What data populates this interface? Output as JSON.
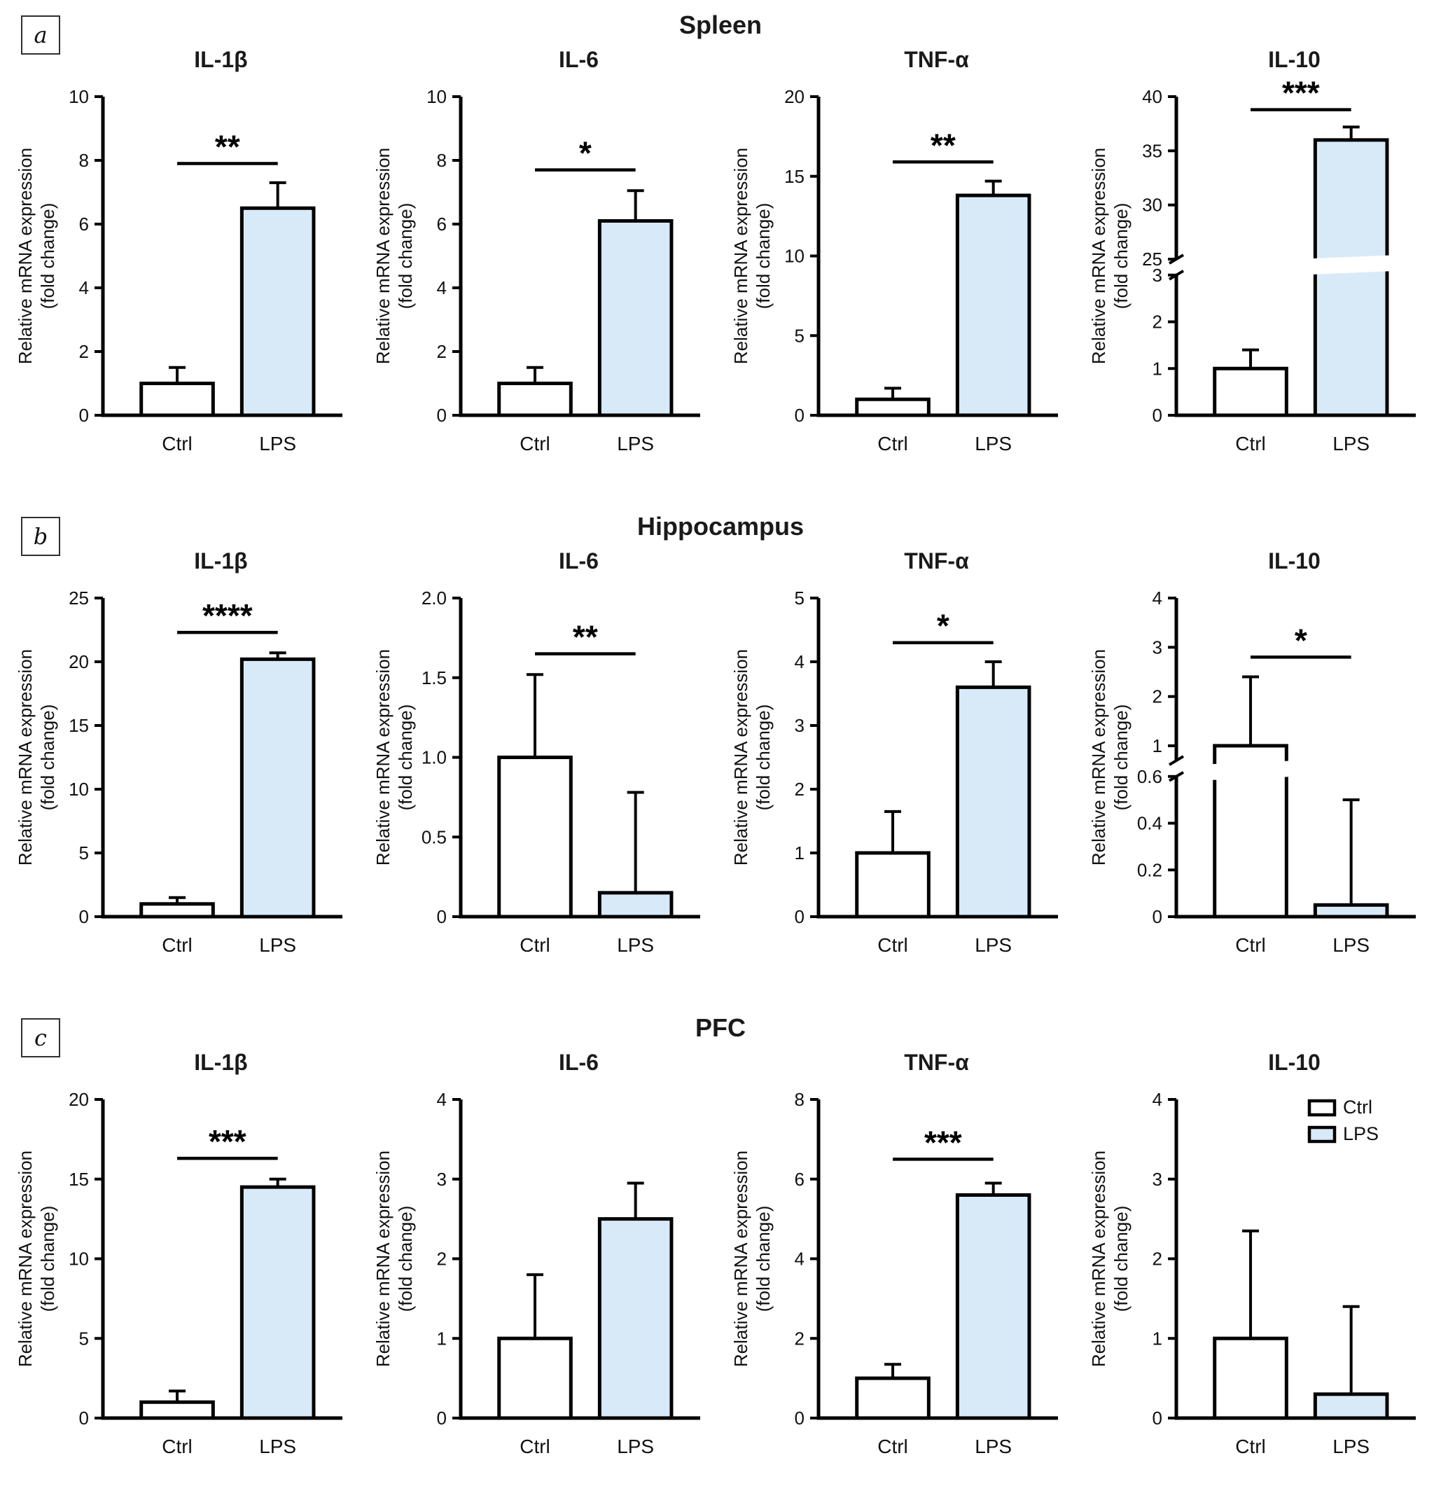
{
  "figure": {
    "panels": [
      {
        "id": "a",
        "title": "Spleen"
      },
      {
        "id": "b",
        "title": "Hippocampus"
      },
      {
        "id": "c",
        "title": "PFC"
      }
    ],
    "ylabel_lines": [
      "Relative mRNA expression",
      "(fold change)"
    ],
    "categories": [
      "Ctrl",
      "LPS"
    ],
    "colors": {
      "ctrl_fill": "#ffffff",
      "lps_fill": "#d8eaf8",
      "stroke": "#000000",
      "background": "#ffffff"
    },
    "legend": [
      {
        "label": "Ctrl",
        "fill": "#ffffff"
      },
      {
        "label": "LPS",
        "fill": "#d8eaf8"
      }
    ]
  },
  "chart_data": [
    {
      "type": "bar",
      "panel": "a",
      "region": "Spleen",
      "title": "IL-1β",
      "categories": [
        "Ctrl",
        "LPS"
      ],
      "values": [
        1.0,
        6.5
      ],
      "errors_up": [
        0.5,
        0.8
      ],
      "significance": "**",
      "sig_y": 7.9,
      "ylabel": "Relative mRNA expression (fold change)",
      "ylim": [
        0,
        10
      ],
      "yticks": [
        0,
        2,
        4,
        6,
        8,
        10
      ],
      "ytick_labels": [
        "0",
        "2",
        "4",
        "6",
        "8",
        "10"
      ]
    },
    {
      "type": "bar",
      "panel": "a",
      "region": "Spleen",
      "title": "IL-6",
      "categories": [
        "Ctrl",
        "LPS"
      ],
      "values": [
        1.0,
        6.1
      ],
      "errors_up": [
        0.5,
        0.95
      ],
      "significance": "*",
      "sig_y": 7.7,
      "ylabel": "Relative mRNA expression (fold change)",
      "ylim": [
        0,
        10
      ],
      "yticks": [
        0,
        2,
        4,
        6,
        8,
        10
      ],
      "ytick_labels": [
        "0",
        "2",
        "4",
        "6",
        "8",
        "10"
      ]
    },
    {
      "type": "bar",
      "panel": "a",
      "region": "Spleen",
      "title": "TNF-α",
      "categories": [
        "Ctrl",
        "LPS"
      ],
      "values": [
        1.0,
        13.8
      ],
      "errors_up": [
        0.7,
        0.9
      ],
      "significance": "**",
      "sig_y": 15.9,
      "ylabel": "Relative mRNA expression (fold change)",
      "ylim": [
        0,
        20
      ],
      "yticks": [
        0,
        5,
        10,
        15,
        20
      ],
      "ytick_labels": [
        "0",
        "5",
        "10",
        "15",
        "20"
      ]
    },
    {
      "type": "bar",
      "panel": "a",
      "region": "Spleen",
      "title": "IL-10",
      "categories": [
        "Ctrl",
        "LPS"
      ],
      "values": [
        1.0,
        36.0
      ],
      "errors_up": [
        0.4,
        1.2
      ],
      "significance": "***",
      "sig_y": 38.8,
      "ylabel": "Relative mRNA expression (fold change)",
      "ylim": [
        0,
        40
      ],
      "axis_break": {
        "lower_lim": [
          0,
          3
        ],
        "lower_ticks": [
          0,
          1,
          2,
          3
        ],
        "lower_tick_labels": [
          "0",
          "1",
          "2",
          "3"
        ],
        "upper_lim": [
          25,
          40
        ],
        "upper_ticks": [
          25,
          30,
          35,
          40
        ],
        "upper_tick_labels": [
          "25",
          "30",
          "35",
          "40"
        ]
      }
    },
    {
      "type": "bar",
      "panel": "b",
      "region": "Hippocampus",
      "title": "IL-1β",
      "categories": [
        "Ctrl",
        "LPS"
      ],
      "values": [
        1.0,
        20.2
      ],
      "errors_up": [
        0.5,
        0.5
      ],
      "significance": "****",
      "sig_y": 22.3,
      "ylabel": "Relative mRNA expression (fold change)",
      "ylim": [
        0,
        25
      ],
      "yticks": [
        0,
        5,
        10,
        15,
        20,
        25
      ],
      "ytick_labels": [
        "0",
        "5",
        "10",
        "15",
        "20",
        "25"
      ]
    },
    {
      "type": "bar",
      "panel": "b",
      "region": "Hippocampus",
      "title": "IL-6",
      "categories": [
        "Ctrl",
        "LPS"
      ],
      "values": [
        1.0,
        0.15
      ],
      "errors_up": [
        0.52,
        0.63
      ],
      "significance": "**",
      "sig_y": 1.65,
      "ylabel": "Relative mRNA expression (fold change)",
      "ylim": [
        0,
        2
      ],
      "yticks": [
        0,
        0.5,
        1.0,
        1.5,
        2.0
      ],
      "ytick_labels": [
        "0",
        "0.5",
        "1.0",
        "1.5",
        "2.0"
      ]
    },
    {
      "type": "bar",
      "panel": "b",
      "region": "Hippocampus",
      "title": "TNF-α",
      "categories": [
        "Ctrl",
        "LPS"
      ],
      "values": [
        1.0,
        3.6
      ],
      "errors_up": [
        0.65,
        0.4
      ],
      "significance": "*",
      "sig_y": 4.3,
      "ylabel": "Relative mRNA expression (fold change)",
      "ylim": [
        0,
        5
      ],
      "yticks": [
        0,
        1,
        2,
        3,
        4,
        5
      ],
      "ytick_labels": [
        "0",
        "1",
        "2",
        "3",
        "4",
        "5"
      ]
    },
    {
      "type": "bar",
      "panel": "b",
      "region": "Hippocampus",
      "title": "IL-10",
      "categories": [
        "Ctrl",
        "LPS"
      ],
      "values": [
        1.0,
        0.05
      ],
      "errors_up": [
        1.4,
        0.45
      ],
      "significance": "*",
      "sig_y": 2.8,
      "ylabel": "Relative mRNA expression (fold change)",
      "ylim": [
        0,
        4
      ],
      "axis_break": {
        "lower_lim": [
          0,
          0.6
        ],
        "lower_ticks": [
          0,
          0.2,
          0.4,
          0.6
        ],
        "lower_tick_labels": [
          "0",
          "0.2",
          "0.4",
          "0.6"
        ],
        "upper_lim": [
          0.7,
          4
        ],
        "upper_ticks": [
          1,
          2,
          3,
          4
        ],
        "upper_tick_labels": [
          "1",
          "2",
          "3",
          "4"
        ]
      }
    },
    {
      "type": "bar",
      "panel": "c",
      "region": "PFC",
      "title": "IL-1β",
      "categories": [
        "Ctrl",
        "LPS"
      ],
      "values": [
        1.0,
        14.5
      ],
      "errors_up": [
        0.7,
        0.5
      ],
      "significance": "***",
      "sig_y": 16.3,
      "ylabel": "Relative mRNA expression (fold change)",
      "ylim": [
        0,
        20
      ],
      "yticks": [
        0,
        5,
        10,
        15,
        20
      ],
      "ytick_labels": [
        "0",
        "5",
        "10",
        "15",
        "20"
      ]
    },
    {
      "type": "bar",
      "panel": "c",
      "region": "PFC",
      "title": "IL-6",
      "categories": [
        "Ctrl",
        "LPS"
      ],
      "values": [
        1.0,
        2.5
      ],
      "errors_up": [
        0.8,
        0.45
      ],
      "significance": null,
      "sig_y": null,
      "ylabel": "Relative mRNA expression (fold change)",
      "ylim": [
        0,
        4
      ],
      "yticks": [
        0,
        1,
        2,
        3,
        4
      ],
      "ytick_labels": [
        "0",
        "1",
        "2",
        "3",
        "4"
      ]
    },
    {
      "type": "bar",
      "panel": "c",
      "region": "PFC",
      "title": "TNF-α",
      "categories": [
        "Ctrl",
        "LPS"
      ],
      "values": [
        1.0,
        5.6
      ],
      "errors_up": [
        0.35,
        0.3
      ],
      "significance": "***",
      "sig_y": 6.5,
      "ylabel": "Relative mRNA expression (fold change)",
      "ylim": [
        0,
        8
      ],
      "yticks": [
        0,
        2,
        4,
        6,
        8
      ],
      "ytick_labels": [
        "0",
        "2",
        "4",
        "6",
        "8"
      ]
    },
    {
      "type": "bar",
      "panel": "c",
      "region": "PFC",
      "title": "IL-10",
      "categories": [
        "Ctrl",
        "LPS"
      ],
      "values": [
        1.0,
        0.3
      ],
      "errors_up": [
        1.35,
        1.1
      ],
      "significance": null,
      "sig_y": null,
      "legend": true,
      "ylabel": "Relative mRNA expression (fold change)",
      "ylim": [
        0,
        4
      ],
      "yticks": [
        0,
        1,
        2,
        3,
        4
      ],
      "ytick_labels": [
        "0",
        "1",
        "2",
        "3",
        "4"
      ]
    }
  ]
}
